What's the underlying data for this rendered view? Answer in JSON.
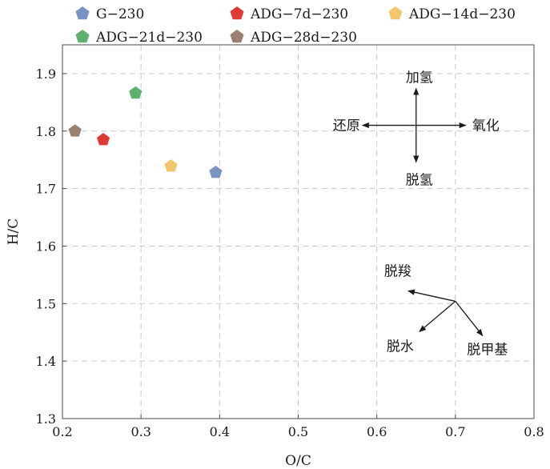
{
  "chart_data": {
    "type": "scatter",
    "xlabel": "O/C",
    "ylabel": "H/C",
    "xlim": [
      0.2,
      0.8
    ],
    "ylim": [
      1.3,
      1.95
    ],
    "x_ticks": [
      "0.2",
      "0.3",
      "0.4",
      "0.5",
      "0.6",
      "0.7",
      "0.8"
    ],
    "y_ticks": [
      "1.3",
      "1.4",
      "1.5",
      "1.6",
      "1.7",
      "1.8",
      "1.9"
    ],
    "grid": true,
    "legend_position": "top",
    "series": [
      {
        "name": "G−230",
        "color": "#7b93c3",
        "x": [
          0.395
        ],
        "y": [
          1.728
        ]
      },
      {
        "name": "ADG−7d−230",
        "color": "#e03a36",
        "x": [
          0.252
        ],
        "y": [
          1.785
        ]
      },
      {
        "name": "ADG−14d−230",
        "color": "#f2c66e",
        "x": [
          0.338
        ],
        "y": [
          1.739
        ]
      },
      {
        "name": "ADG−21d−230",
        "color": "#5faf6e",
        "x": [
          0.293
        ],
        "y": [
          1.866
        ]
      },
      {
        "name": "ADG−28d−230",
        "color": "#9a8070",
        "x": [
          0.216
        ],
        "y": [
          1.8
        ]
      }
    ],
    "annotations": {
      "cross": {
        "center": [
          0.65,
          1.81
        ],
        "up": "加氢",
        "down": "脱氢",
        "left": "还原",
        "right": "氧化"
      },
      "process": {
        "origin": [
          0.7,
          1.504
        ],
        "decarboxylation": "脱羧",
        "dehydration": "脱水",
        "demethylation": "脱甲基"
      }
    }
  }
}
